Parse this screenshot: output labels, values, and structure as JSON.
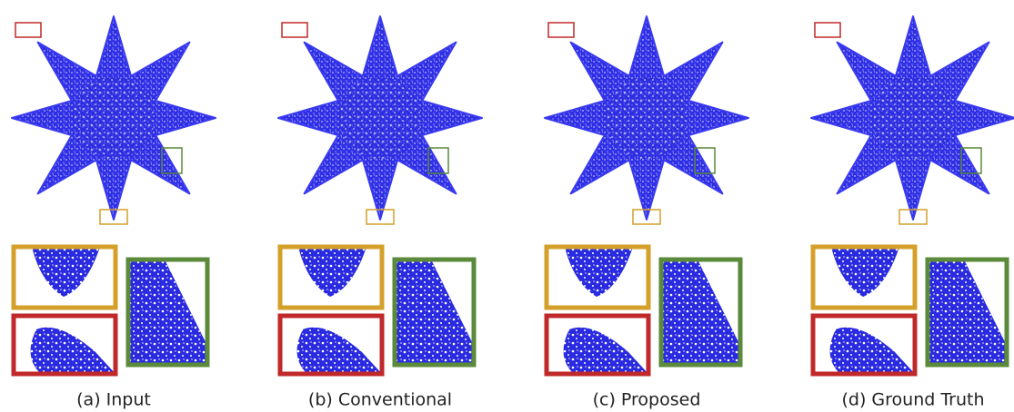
{
  "panels": [
    {
      "caption": "(a) Input"
    },
    {
      "caption": "(b) Conventional"
    },
    {
      "caption": "(c) Proposed"
    },
    {
      "caption": "(d) Ground Truth"
    }
  ]
}
